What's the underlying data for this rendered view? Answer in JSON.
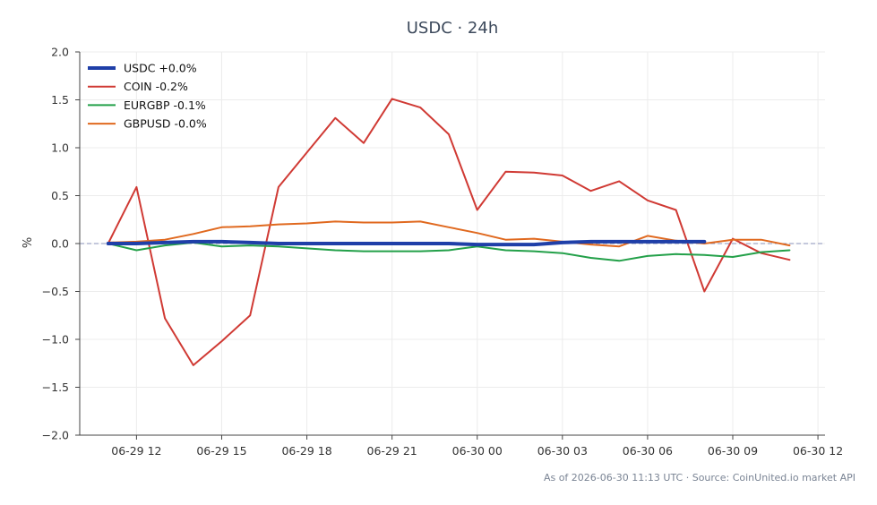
{
  "chart_data": {
    "type": "line",
    "title": "USDC · 24h",
    "xlabel": "",
    "ylabel": "%",
    "ylim": [
      -2.0,
      2.0
    ],
    "y_ticks": [
      "2.0",
      "1.5",
      "1.0",
      "0.5",
      "0.0",
      "−0.5",
      "−1.0",
      "−1.5",
      "−2.0"
    ],
    "y_tick_values": [
      2.0,
      1.5,
      1.0,
      0.5,
      0.0,
      -0.5,
      -1.0,
      -1.5,
      -2.0
    ],
    "xlim": [
      "06-29 10:00",
      "06-30 12:15"
    ],
    "x_ticks": [
      "06-29 12",
      "06-29 15",
      "06-29 18",
      "06-29 21",
      "06-30 00",
      "06-30 03",
      "06-30 06",
      "06-30 09",
      "06-30 12"
    ],
    "x_tick_values": [
      "06-29 12:00",
      "06-29 15:00",
      "06-29 18:00",
      "06-29 21:00",
      "06-30 00:00",
      "06-30 03:00",
      "06-30 06:00",
      "06-30 09:00",
      "06-30 12:00"
    ],
    "grid": true,
    "zero_line": true,
    "legend_position": "top-left",
    "series": [
      {
        "name": "USDC +0.0%",
        "color": "#1f3fa8",
        "x": [
          "06-29 11:00",
          "06-29 12:00",
          "06-29 13:00",
          "06-29 14:00",
          "06-29 15:00",
          "06-29 16:00",
          "06-29 17:00",
          "06-29 18:00",
          "06-29 19:00",
          "06-29 20:00",
          "06-29 21:00",
          "06-29 22:00",
          "06-29 23:00",
          "06-30 00:00",
          "06-30 01:00",
          "06-30 02:00",
          "06-30 03:00",
          "06-30 04:00",
          "06-30 05:00",
          "06-30 06:00",
          "06-30 07:00",
          "06-30 08:00"
        ],
        "values": [
          0.0,
          0.0,
          0.01,
          0.02,
          0.02,
          0.01,
          0.0,
          0.0,
          0.0,
          0.0,
          0.0,
          0.0,
          0.0,
          -0.01,
          -0.01,
          -0.01,
          0.01,
          0.02,
          0.02,
          0.02,
          0.02,
          0.02
        ]
      },
      {
        "name": "COIN -0.2%",
        "color": "#d03a34",
        "x": [
          "06-29 11:00",
          "06-29 12:00",
          "06-29 13:00",
          "06-29 14:00",
          "06-29 15:00",
          "06-29 16:00",
          "06-29 17:00",
          "06-29 18:00",
          "06-29 19:00",
          "06-29 20:00",
          "06-29 21:00",
          "06-29 22:00",
          "06-29 23:00",
          "06-30 00:00",
          "06-30 01:00",
          "06-30 02:00",
          "06-30 03:00",
          "06-30 04:00",
          "06-30 05:00",
          "06-30 06:00",
          "06-30 07:00",
          "06-30 08:00",
          "06-30 09:00",
          "06-30 10:00",
          "06-30 11:00"
        ],
        "values": [
          0.0,
          0.59,
          -0.78,
          -1.27,
          -1.02,
          -0.75,
          0.59,
          0.95,
          1.31,
          1.05,
          1.51,
          1.42,
          1.14,
          0.35,
          0.75,
          0.74,
          0.71,
          0.55,
          0.65,
          0.45,
          0.35,
          -0.5,
          0.05,
          -0.1,
          -0.17
        ]
      },
      {
        "name": "EURGBP -0.1%",
        "color": "#23a049",
        "x": [
          "06-29 11:00",
          "06-29 12:00",
          "06-29 13:00",
          "06-29 14:00",
          "06-29 15:00",
          "06-29 16:00",
          "06-29 17:00",
          "06-29 18:00",
          "06-29 19:00",
          "06-29 20:00",
          "06-29 21:00",
          "06-29 22:00",
          "06-29 23:00",
          "06-30 00:00",
          "06-30 01:00",
          "06-30 02:00",
          "06-30 03:00",
          "06-30 04:00",
          "06-30 05:00",
          "06-30 06:00",
          "06-30 07:00",
          "06-30 08:00",
          "06-30 09:00",
          "06-30 10:00",
          "06-30 11:00"
        ],
        "values": [
          0.0,
          -0.07,
          -0.02,
          0.01,
          -0.03,
          -0.02,
          -0.03,
          -0.05,
          -0.07,
          -0.08,
          -0.08,
          -0.08,
          -0.07,
          -0.03,
          -0.07,
          -0.08,
          -0.1,
          -0.15,
          -0.18,
          -0.13,
          -0.11,
          -0.12,
          -0.14,
          -0.09,
          -0.07
        ]
      },
      {
        "name": "GBPUSD -0.0%",
        "color": "#e0691f",
        "x": [
          "06-29 11:00",
          "06-29 12:00",
          "06-29 13:00",
          "06-29 14:00",
          "06-29 15:00",
          "06-29 16:00",
          "06-29 17:00",
          "06-29 18:00",
          "06-29 19:00",
          "06-29 20:00",
          "06-29 21:00",
          "06-29 22:00",
          "06-29 23:00",
          "06-30 00:00",
          "06-30 01:00",
          "06-30 02:00",
          "06-30 03:00",
          "06-30 04:00",
          "06-30 05:00",
          "06-30 06:00",
          "06-30 07:00",
          "06-30 08:00",
          "06-30 09:00",
          "06-30 10:00",
          "06-30 11:00"
        ],
        "values": [
          0.01,
          0.02,
          0.04,
          0.1,
          0.17,
          0.18,
          0.2,
          0.21,
          0.23,
          0.22,
          0.22,
          0.23,
          0.17,
          0.11,
          0.04,
          0.05,
          0.02,
          -0.01,
          -0.03,
          0.08,
          0.03,
          0.0,
          0.04,
          0.04,
          -0.02
        ]
      }
    ],
    "footer": "As of 2026-06-30 11:13 UTC · Source: CoinUnited.io market API"
  }
}
